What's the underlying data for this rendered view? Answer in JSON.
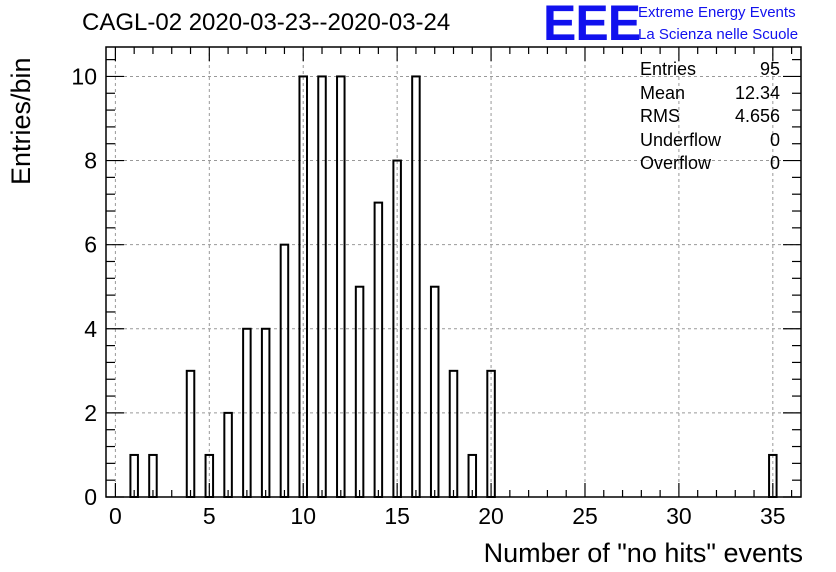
{
  "title": "CAGL-02 2020-03-23--2020-03-24",
  "logo": {
    "mark": "EEE",
    "line1": "Extreme Energy Events",
    "line2": "La Scienza nelle Scuole"
  },
  "stats": [
    {
      "label": "Entries",
      "value": "95"
    },
    {
      "label": "Mean",
      "value": "12.34"
    },
    {
      "label": "RMS",
      "value": "4.656"
    },
    {
      "label": "Underflow",
      "value": "0"
    },
    {
      "label": "Overflow",
      "value": "0"
    }
  ],
  "colors": {
    "bars": "#000000",
    "grid": "#999999",
    "logo": "#1111ee"
  },
  "chart_data": {
    "type": "bar",
    "title": "CAGL-02 2020-03-23--2020-03-24",
    "xlabel": "Number of \"no hits\" events",
    "ylabel": "Entries/bin",
    "xlim": [
      -0.5,
      36.5
    ],
    "ylim": [
      0,
      10.7
    ],
    "xticks": [
      "0",
      "5",
      "10",
      "15",
      "20",
      "25",
      "30",
      "35"
    ],
    "yticks": [
      "0",
      "2",
      "4",
      "6",
      "8",
      "10"
    ],
    "grid": true,
    "x": [
      1,
      2,
      4,
      5,
      6,
      7,
      8,
      9,
      10,
      11,
      12,
      13,
      14,
      15,
      16,
      17,
      18,
      19,
      20,
      35
    ],
    "values": [
      1,
      1,
      3,
      1,
      2,
      4,
      4,
      6,
      10,
      10,
      10,
      5,
      7,
      8,
      10,
      5,
      3,
      1,
      3,
      1
    ]
  }
}
